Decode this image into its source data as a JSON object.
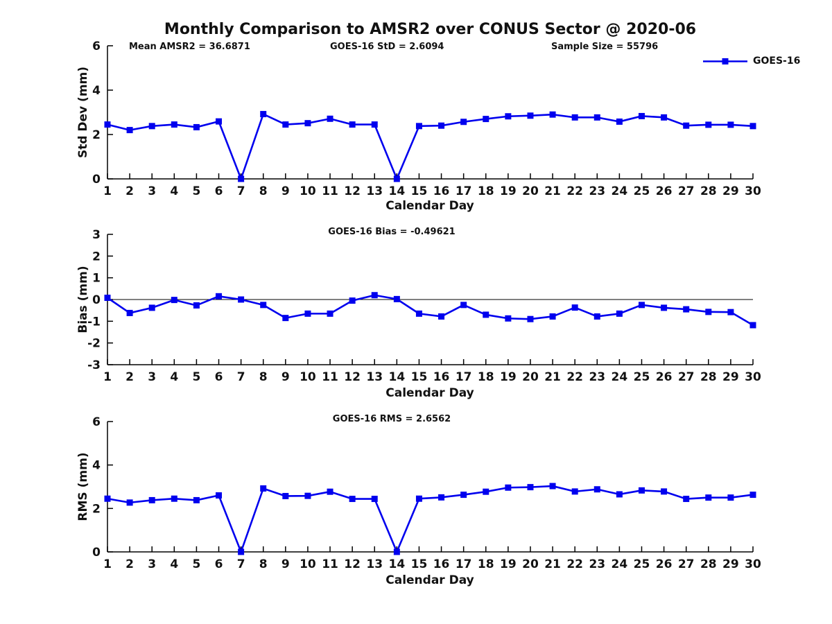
{
  "colors": {
    "series": "#0000EE",
    "axis": "#000000",
    "text": "#111111"
  },
  "title": "Monthly Comparison to AMSR2 over CONUS Sector @ 2020-06",
  "header_stats": {
    "mean_amsr2": "Mean AMSR2 = 36.6871",
    "goes16_std": "GOES-16 StD = 2.6094",
    "sample_size": "Sample Size = 55796"
  },
  "legend": {
    "label": "GOES-16",
    "position": "top-right"
  },
  "chart_data": [
    {
      "id": "std-dev",
      "type": "line",
      "title": "",
      "xlabel": "Calendar Day",
      "ylabel": "Std Dev (mm)",
      "annotation": "",
      "x": [
        1,
        2,
        3,
        4,
        5,
        6,
        7,
        8,
        9,
        10,
        11,
        12,
        13,
        14,
        15,
        16,
        17,
        18,
        19,
        20,
        21,
        22,
        23,
        24,
        25,
        26,
        27,
        28,
        29,
        30
      ],
      "xlim": [
        1,
        30
      ],
      "ylim": [
        0,
        6
      ],
      "yticks": [
        0,
        2,
        4,
        6
      ],
      "zero_line": false,
      "grid": false,
      "series": [
        {
          "name": "GOES-16",
          "values": [
            2.45,
            2.2,
            2.38,
            2.45,
            2.33,
            2.59,
            0.0,
            2.92,
            2.45,
            2.51,
            2.71,
            2.45,
            2.45,
            0.0,
            2.38,
            2.4,
            2.57,
            2.7,
            2.82,
            2.85,
            2.9,
            2.77,
            2.77,
            2.58,
            2.83,
            2.77,
            2.4,
            2.44,
            2.44,
            2.38
          ]
        }
      ]
    },
    {
      "id": "bias",
      "type": "line",
      "title": "",
      "xlabel": "Calendar Day",
      "ylabel": "Bias (mm)",
      "annotation": "GOES-16 Bias = -0.49621",
      "x": [
        1,
        2,
        3,
        4,
        5,
        6,
        7,
        8,
        9,
        10,
        11,
        12,
        13,
        14,
        15,
        16,
        17,
        18,
        19,
        20,
        21,
        22,
        23,
        24,
        25,
        26,
        27,
        28,
        29,
        30
      ],
      "xlim": [
        1,
        30
      ],
      "ylim": [
        -3,
        3
      ],
      "yticks": [
        3,
        2,
        1,
        0,
        -1,
        -2,
        -3
      ],
      "zero_line": true,
      "grid": false,
      "series": [
        {
          "name": "GOES-16",
          "values": [
            0.08,
            -0.62,
            -0.38,
            -0.02,
            -0.27,
            0.15,
            0.0,
            -0.25,
            -0.85,
            -0.65,
            -0.65,
            -0.05,
            0.2,
            0.02,
            -0.65,
            -0.78,
            -0.25,
            -0.7,
            -0.87,
            -0.9,
            -0.78,
            -0.37,
            -0.78,
            -0.65,
            -0.25,
            -0.38,
            -0.45,
            -0.57,
            -0.58,
            -1.18
          ]
        }
      ]
    },
    {
      "id": "rms",
      "type": "line",
      "title": "",
      "xlabel": "Calendar Day",
      "ylabel": "RMS (mm)",
      "annotation": "GOES-16 RMS = 2.6562",
      "x": [
        1,
        2,
        3,
        4,
        5,
        6,
        7,
        8,
        9,
        10,
        11,
        12,
        13,
        14,
        15,
        16,
        17,
        18,
        19,
        20,
        21,
        22,
        23,
        24,
        25,
        26,
        27,
        28,
        29,
        30
      ],
      "xlim": [
        1,
        30
      ],
      "ylim": [
        0,
        6
      ],
      "yticks": [
        0,
        2,
        4,
        6
      ],
      "zero_line": false,
      "grid": false,
      "series": [
        {
          "name": "GOES-16",
          "values": [
            2.45,
            2.27,
            2.38,
            2.45,
            2.38,
            2.6,
            0.0,
            2.92,
            2.57,
            2.58,
            2.77,
            2.44,
            2.44,
            0.0,
            2.45,
            2.51,
            2.63,
            2.77,
            2.96,
            2.98,
            3.03,
            2.78,
            2.88,
            2.65,
            2.83,
            2.78,
            2.44,
            2.5,
            2.5,
            2.63
          ]
        }
      ]
    }
  ]
}
